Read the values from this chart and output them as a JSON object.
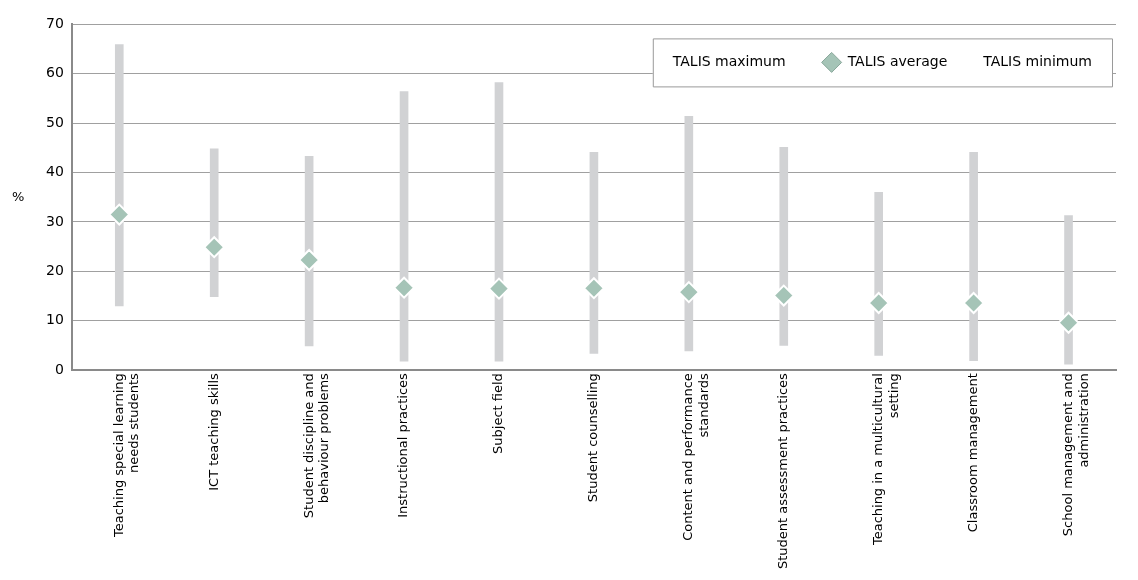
{
  "chart_data": {
    "type": "bar",
    "ylabel": "%",
    "categories": [
      "Teaching special learning needs students",
      "ICT teaching skills",
      "Student discipline and behaviour problems",
      "Instructional practices",
      "Subject field",
      "Student counselling",
      "Content and performance standards",
      "Student assessment practices",
      "Teaching in a multicultural setting",
      "Classroom management",
      "School management and administration"
    ],
    "series": [
      {
        "color": "#d1d2d4",
        "base": [
          13.0,
          14.9,
          4.9,
          1.8,
          1.8,
          3.4,
          3.9,
          5.0,
          3.0,
          1.9,
          1.2
        ],
        "values": [
          52.9,
          29.9,
          38.4,
          54.6,
          56.4,
          40.7,
          47.5,
          40.1,
          33.0,
          42.2,
          30.1
        ]
      },
      {
        "name": "TALIS average",
        "type": "scatter",
        "marker": "diamond",
        "color": "#a5c4b7",
        "values": [
          31.5,
          24.9,
          22.3,
          16.7,
          16.5,
          16.6,
          15.8,
          15.1,
          13.6,
          13.6,
          9.6
        ]
      }
    ],
    "annotations": [
      "TALIS maximum",
      "TALIS minimum"
    ],
    "ylim": [
      0,
      70
    ],
    "yticks": [
      0,
      10,
      20,
      30,
      40,
      50,
      60,
      70
    ],
    "grid": "y",
    "legend": "top right"
  }
}
